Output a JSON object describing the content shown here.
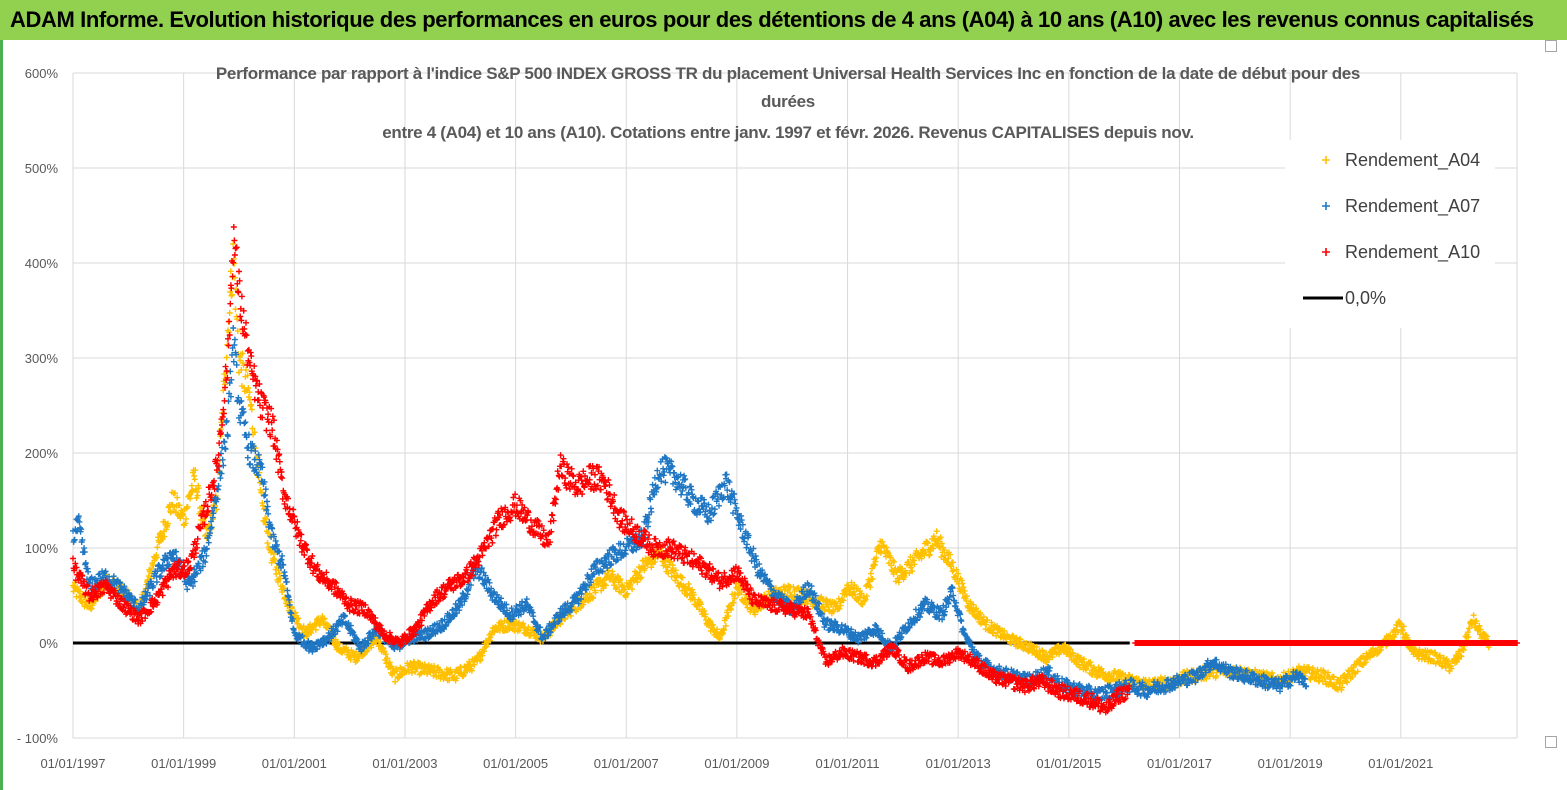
{
  "banner": {
    "text": "ADAM Informe. Evolution historique des performances en euros pour des détentions de 4 ans (A04) à 10 ans (A10) avec les revenus connus capitalisés"
  },
  "chart_data": {
    "type": "scatter",
    "title_lines": [
      "Performance par rapport à l'indice S&P 500 INDEX GROSS TR  du placement Universal Health Services Inc en fonction de la date de début pour des",
      "durées",
      "entre 4 (A04) et 10 ans (A10). Cotations entre janv. 1997 et févr. 2026. Revenus CAPITALISES depuis nov."
    ],
    "xlim": [
      1997.0,
      2023.1
    ],
    "ylim": [
      -100,
      600
    ],
    "y_ticks": [
      -100,
      0,
      100,
      200,
      300,
      400,
      500,
      600
    ],
    "y_tick_labels": [
      "- 100%",
      "0%",
      "100%",
      "200%",
      "300%",
      "400%",
      "500%",
      "600%"
    ],
    "x_ticks": [
      1997,
      1999,
      2001,
      2003,
      2005,
      2007,
      2009,
      2011,
      2013,
      2015,
      2017,
      2019,
      2021
    ],
    "x_tick_labels": [
      "01/01/1997",
      "01/01/1999",
      "01/01/2001",
      "01/01/2003",
      "01/01/2005",
      "01/01/2007",
      "01/01/2009",
      "01/01/2011",
      "01/01/2013",
      "01/01/2015",
      "01/01/2017",
      "01/01/2019",
      "01/01/2021"
    ],
    "grid": {
      "horizontal": true,
      "vertical": true,
      "color": "#d9d9d9"
    },
    "legend_position": "top-right",
    "series": [
      {
        "name": "Rendement_A04",
        "color": "#ffc000",
        "x_end": 2022.6,
        "points": [
          [
            1997.0,
            58
          ],
          [
            1997.3,
            38
          ],
          [
            1997.6,
            65
          ],
          [
            1997.9,
            55
          ],
          [
            1998.2,
            33
          ],
          [
            1998.5,
            95
          ],
          [
            1998.8,
            150
          ],
          [
            1999.0,
            130
          ],
          [
            1999.2,
            175
          ],
          [
            1999.4,
            110
          ],
          [
            1999.6,
            150
          ],
          [
            1999.8,
            330
          ],
          [
            1999.9,
            410
          ],
          [
            2000.0,
            300
          ],
          [
            2000.2,
            255
          ],
          [
            2000.4,
            150
          ],
          [
            2000.6,
            90
          ],
          [
            2000.9,
            40
          ],
          [
            2001.2,
            10
          ],
          [
            2001.5,
            25
          ],
          [
            2001.8,
            -5
          ],
          [
            2002.1,
            -15
          ],
          [
            2002.5,
            5
          ],
          [
            2002.8,
            -35
          ],
          [
            2003.1,
            -25
          ],
          [
            2003.5,
            -30
          ],
          [
            2003.9,
            -35
          ],
          [
            2004.3,
            -20
          ],
          [
            2004.6,
            15
          ],
          [
            2004.9,
            20
          ],
          [
            2005.2,
            15
          ],
          [
            2005.5,
            5
          ],
          [
            2005.8,
            25
          ],
          [
            2006.1,
            40
          ],
          [
            2006.4,
            55
          ],
          [
            2006.7,
            70
          ],
          [
            2007.0,
            55
          ],
          [
            2007.3,
            80
          ],
          [
            2007.6,
            95
          ],
          [
            2007.9,
            70
          ],
          [
            2008.2,
            50
          ],
          [
            2008.5,
            20
          ],
          [
            2008.7,
            5
          ],
          [
            2009.0,
            60
          ],
          [
            2009.3,
            35
          ],
          [
            2009.6,
            50
          ],
          [
            2010.0,
            55
          ],
          [
            2010.4,
            45
          ],
          [
            2010.8,
            35
          ],
          [
            2011.0,
            60
          ],
          [
            2011.3,
            45
          ],
          [
            2011.6,
            105
          ],
          [
            2011.9,
            70
          ],
          [
            2012.2,
            85
          ],
          [
            2012.6,
            110
          ],
          [
            2012.9,
            80
          ],
          [
            2013.2,
            40
          ],
          [
            2013.5,
            20
          ],
          [
            2013.9,
            5
          ],
          [
            2014.3,
            -5
          ],
          [
            2014.6,
            -15
          ],
          [
            2014.9,
            -5
          ],
          [
            2015.2,
            -20
          ],
          [
            2015.5,
            -30
          ],
          [
            2015.8,
            -35
          ],
          [
            2016.1,
            -40
          ],
          [
            2016.5,
            -45
          ],
          [
            2016.9,
            -40
          ],
          [
            2017.2,
            -35
          ],
          [
            2017.6,
            -30
          ],
          [
            2018.0,
            -30
          ],
          [
            2018.4,
            -35
          ],
          [
            2018.8,
            -40
          ],
          [
            2019.2,
            -30
          ],
          [
            2019.6,
            -35
          ],
          [
            2019.9,
            -45
          ],
          [
            2020.2,
            -25
          ],
          [
            2020.5,
            -10
          ],
          [
            2020.8,
            5
          ],
          [
            2021.0,
            20
          ],
          [
            2021.2,
            -10
          ],
          [
            2021.6,
            -15
          ],
          [
            2021.9,
            -25
          ],
          [
            2022.1,
            -10
          ],
          [
            2022.3,
            25
          ],
          [
            2022.5,
            5
          ],
          [
            2022.6,
            0
          ]
        ]
      },
      {
        "name": "Rendement_A07",
        "color": "#1f77c4",
        "x_end": 2019.3,
        "points": [
          [
            1997.0,
            110
          ],
          [
            1997.1,
            125
          ],
          [
            1997.3,
            60
          ],
          [
            1997.6,
            70
          ],
          [
            1997.9,
            55
          ],
          [
            1998.2,
            35
          ],
          [
            1998.5,
            70
          ],
          [
            1998.8,
            95
          ],
          [
            1999.1,
            60
          ],
          [
            1999.4,
            95
          ],
          [
            1999.6,
            160
          ],
          [
            1999.8,
            230
          ],
          [
            1999.9,
            320
          ],
          [
            2000.0,
            250
          ],
          [
            2000.2,
            200
          ],
          [
            2000.4,
            180
          ],
          [
            2000.6,
            110
          ],
          [
            2000.8,
            80
          ],
          [
            2001.0,
            10
          ],
          [
            2001.3,
            -5
          ],
          [
            2001.6,
            5
          ],
          [
            2001.9,
            25
          ],
          [
            2002.2,
            -5
          ],
          [
            2002.5,
            15
          ],
          [
            2002.8,
            -5
          ],
          [
            2003.1,
            5
          ],
          [
            2003.4,
            10
          ],
          [
            2003.7,
            20
          ],
          [
            2004.0,
            40
          ],
          [
            2004.3,
            80
          ],
          [
            2004.6,
            50
          ],
          [
            2004.9,
            30
          ],
          [
            2005.2,
            40
          ],
          [
            2005.5,
            5
          ],
          [
            2005.8,
            30
          ],
          [
            2006.1,
            45
          ],
          [
            2006.4,
            75
          ],
          [
            2006.7,
            90
          ],
          [
            2007.0,
            100
          ],
          [
            2007.3,
            110
          ],
          [
            2007.6,
            185
          ],
          [
            2007.9,
            175
          ],
          [
            2008.2,
            150
          ],
          [
            2008.5,
            135
          ],
          [
            2008.8,
            170
          ],
          [
            2009.1,
            120
          ],
          [
            2009.4,
            75
          ],
          [
            2009.7,
            50
          ],
          [
            2010.0,
            35
          ],
          [
            2010.3,
            60
          ],
          [
            2010.6,
            20
          ],
          [
            2010.9,
            15
          ],
          [
            2011.2,
            5
          ],
          [
            2011.5,
            15
          ],
          [
            2011.8,
            -5
          ],
          [
            2012.1,
            20
          ],
          [
            2012.4,
            40
          ],
          [
            2012.7,
            30
          ],
          [
            2012.9,
            55
          ],
          [
            2013.1,
            10
          ],
          [
            2013.4,
            -20
          ],
          [
            2013.7,
            -30
          ],
          [
            2014.0,
            -35
          ],
          [
            2014.3,
            -40
          ],
          [
            2014.6,
            -30
          ],
          [
            2014.9,
            -45
          ],
          [
            2015.2,
            -50
          ],
          [
            2015.5,
            -55
          ],
          [
            2015.8,
            -50
          ],
          [
            2016.1,
            -45
          ],
          [
            2016.4,
            -50
          ],
          [
            2016.7,
            -45
          ],
          [
            2017.0,
            -40
          ],
          [
            2017.3,
            -35
          ],
          [
            2017.6,
            -20
          ],
          [
            2017.9,
            -30
          ],
          [
            2018.2,
            -35
          ],
          [
            2018.5,
            -40
          ],
          [
            2018.8,
            -45
          ],
          [
            2019.1,
            -35
          ],
          [
            2019.3,
            -40
          ]
        ]
      },
      {
        "name": "Rendement_A10",
        "color": "#ff0000",
        "x_end": 2016.1,
        "points": [
          [
            1997.0,
            80
          ],
          [
            1997.3,
            50
          ],
          [
            1997.6,
            60
          ],
          [
            1997.9,
            40
          ],
          [
            1998.2,
            25
          ],
          [
            1998.5,
            45
          ],
          [
            1998.8,
            75
          ],
          [
            1999.1,
            80
          ],
          [
            1999.4,
            140
          ],
          [
            1999.6,
            185
          ],
          [
            1999.8,
            300
          ],
          [
            1999.9,
            430
          ],
          [
            2000.0,
            370
          ],
          [
            2000.2,
            290
          ],
          [
            2000.4,
            250
          ],
          [
            2000.6,
            230
          ],
          [
            2000.8,
            160
          ],
          [
            2001.1,
            110
          ],
          [
            2001.4,
            75
          ],
          [
            2001.7,
            60
          ],
          [
            2002.0,
            40
          ],
          [
            2002.3,
            35
          ],
          [
            2002.6,
            10
          ],
          [
            2002.9,
            0
          ],
          [
            2003.2,
            15
          ],
          [
            2003.5,
            45
          ],
          [
            2003.8,
            60
          ],
          [
            2004.1,
            70
          ],
          [
            2004.4,
            95
          ],
          [
            2004.7,
            130
          ],
          [
            2005.0,
            145
          ],
          [
            2005.3,
            125
          ],
          [
            2005.6,
            105
          ],
          [
            2005.8,
            185
          ],
          [
            2006.1,
            165
          ],
          [
            2006.4,
            175
          ],
          [
            2006.6,
            170
          ],
          [
            2006.9,
            130
          ],
          [
            2007.2,
            115
          ],
          [
            2007.5,
            100
          ],
          [
            2007.8,
            100
          ],
          [
            2008.1,
            90
          ],
          [
            2008.4,
            80
          ],
          [
            2008.7,
            65
          ],
          [
            2009.0,
            75
          ],
          [
            2009.3,
            45
          ],
          [
            2009.6,
            40
          ],
          [
            2010.0,
            35
          ],
          [
            2010.3,
            30
          ],
          [
            2010.6,
            -20
          ],
          [
            2010.9,
            -10
          ],
          [
            2011.2,
            -15
          ],
          [
            2011.5,
            -20
          ],
          [
            2011.8,
            -5
          ],
          [
            2012.1,
            -25
          ],
          [
            2012.4,
            -15
          ],
          [
            2012.7,
            -20
          ],
          [
            2013.0,
            -10
          ],
          [
            2013.3,
            -20
          ],
          [
            2013.6,
            -35
          ],
          [
            2013.9,
            -40
          ],
          [
            2014.2,
            -45
          ],
          [
            2014.5,
            -40
          ],
          [
            2014.8,
            -50
          ],
          [
            2015.1,
            -55
          ],
          [
            2015.4,
            -60
          ],
          [
            2015.7,
            -70
          ],
          [
            2015.9,
            -55
          ],
          [
            2016.1,
            -50
          ]
        ]
      },
      {
        "name": "0,0%",
        "color": "#000000",
        "type": "line",
        "y": 0,
        "x_from": 1997.0,
        "x_to": 2016.1
      }
    ],
    "zero_marker": {
      "color": "#ff0000",
      "x_from": 2016.2,
      "x_to": 2023.1,
      "y": 0
    }
  }
}
